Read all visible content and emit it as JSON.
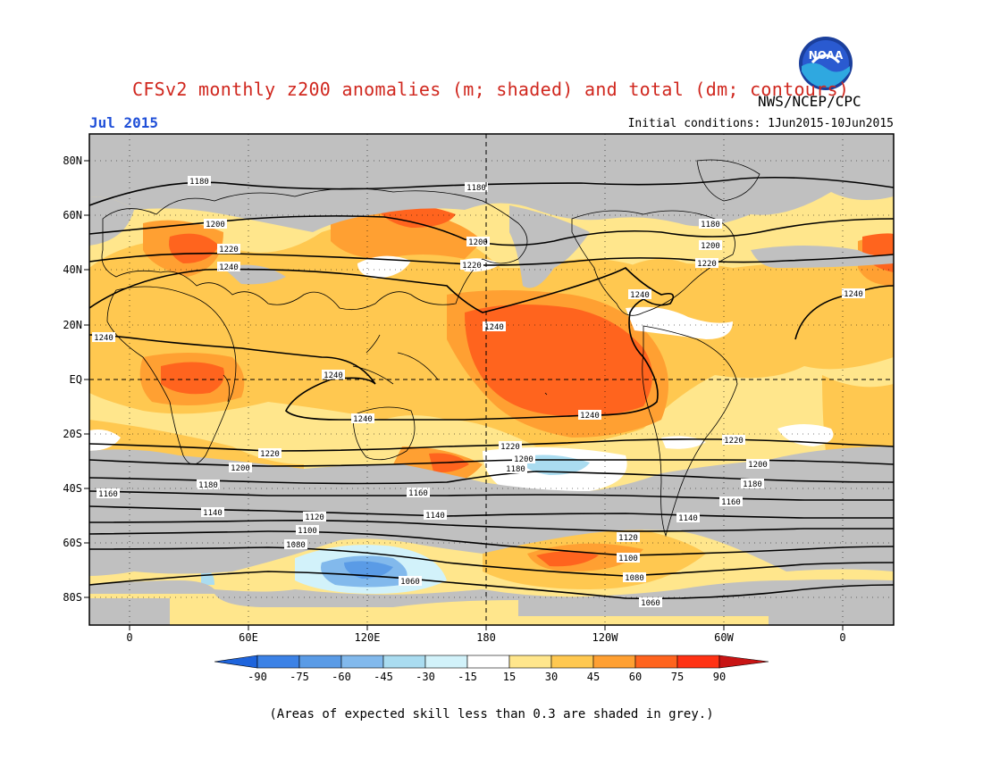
{
  "header": {
    "title": "CFSv2 monthly z200 anomalies (m; shaded) and total (dm; contours)",
    "agency": "NWS/NCEP/CPC",
    "month": "Jul 2015",
    "initial_conditions": "Initial conditions: 1Jun2015-10Jun2015",
    "logo_text": "NOAA"
  },
  "map": {
    "lat_labels": [
      "80N",
      "60N",
      "40N",
      "20N",
      "EQ",
      "20S",
      "40S",
      "60S",
      "80S"
    ],
    "lon_labels": [
      "0",
      "60E",
      "120E",
      "180",
      "120W",
      "60W",
      "0"
    ],
    "contour_labels": [
      "1060",
      "1080",
      "1100",
      "1120",
      "1140",
      "1160",
      "1180",
      "1200",
      "1220",
      "1240"
    ],
    "colors": {
      "skill_grey": "#c0c0c0",
      "frame": "#000000",
      "contour": "#000000"
    }
  },
  "colorbar": {
    "tick_labels": [
      "-90",
      "-75",
      "-60",
      "-45",
      "-30",
      "-15",
      "15",
      "30",
      "45",
      "60",
      "75",
      "90"
    ],
    "colors": [
      "#1e64dc",
      "#3c82e6",
      "#5a9be6",
      "#82b9ec",
      "#aadcf0",
      "#d2f2fa",
      "#ffffff",
      "#ffe68c",
      "#ffc850",
      "#ffa032",
      "#ff641e",
      "#ff3214",
      "#c81414"
    ]
  },
  "footnote": "(Areas of expected skill less than 0.3 are shaded in grey.)"
}
